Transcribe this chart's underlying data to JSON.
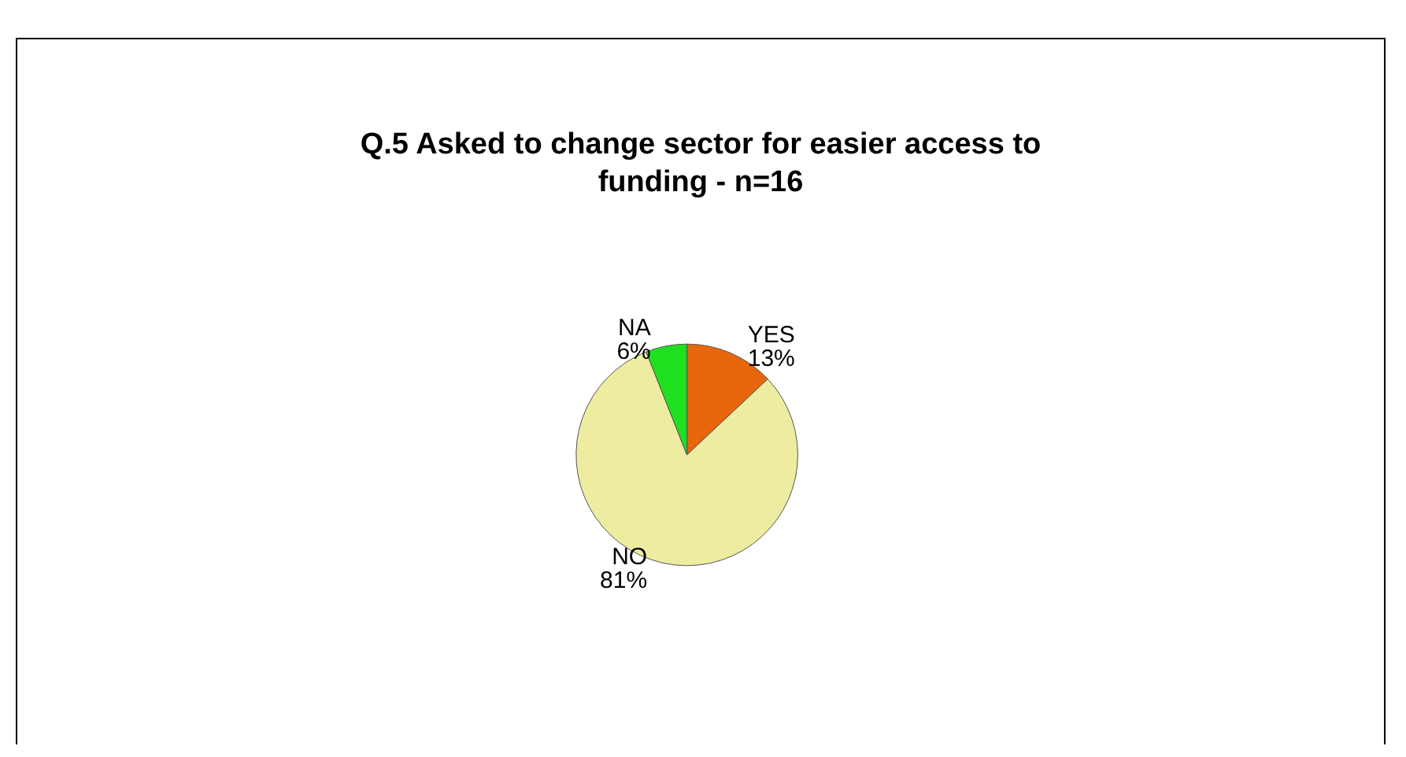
{
  "chart_data": {
    "type": "pie",
    "title": "Q.5 Asked to change sector for easier access to\nfunding - n=16",
    "categories": [
      "YES",
      "NO",
      "NA"
    ],
    "values": [
      13,
      81,
      6
    ],
    "colors": [
      "#e8660c",
      "#eeeca0",
      "#1fe01f"
    ],
    "value_labels": [
      "13%",
      "81%",
      "6%"
    ]
  }
}
